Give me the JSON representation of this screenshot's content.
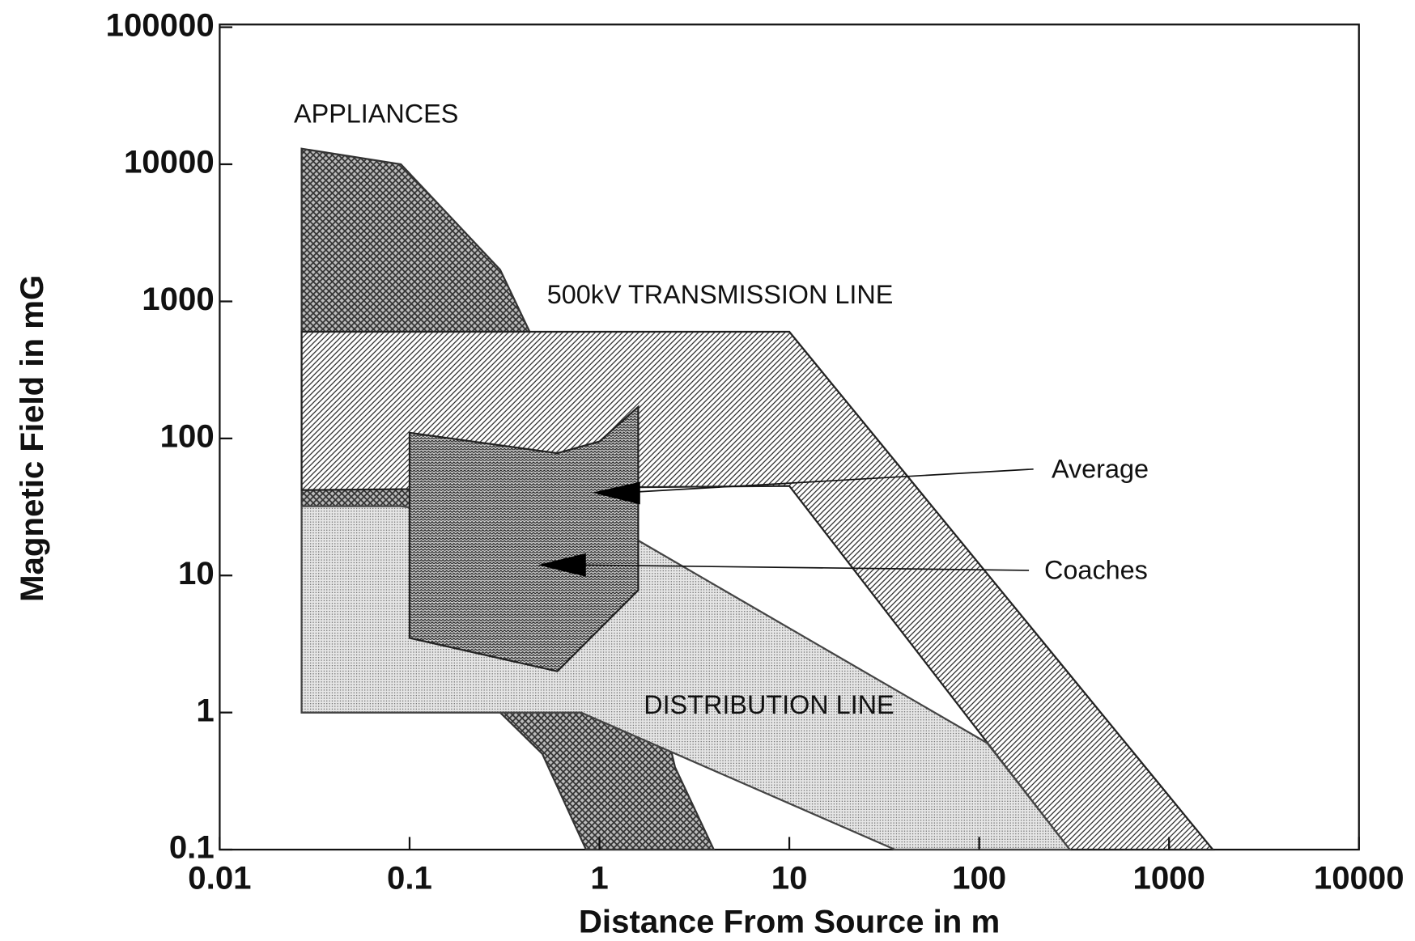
{
  "chart_data": {
    "type": "region",
    "xlabel": "Distance From Source in m",
    "ylabel": "Magnetic Field in mG",
    "xscale": "log",
    "yscale": "log",
    "xlim": [
      0.01,
      10000
    ],
    "ylim": [
      0.1,
      100000
    ],
    "xticks": [
      0.01,
      0.1,
      1,
      10,
      100,
      1000,
      10000
    ],
    "yticks": [
      0.1,
      1,
      10,
      100,
      1000,
      10000,
      100000
    ],
    "series": [
      {
        "name": "APPLIANCES",
        "color": "#333333",
        "x": [
          0.027,
          0.09,
          0.3,
          1.2,
          2.5,
          4,
          0.85,
          0.5,
          0.3,
          0.027
        ],
        "y": [
          13000,
          10000,
          1700,
          30,
          0.4,
          0.1,
          0.1,
          0.5,
          1,
          1
        ]
      },
      {
        "name": "500kV TRANSMISSION LINE",
        "color": "#222222",
        "x": [
          0.027,
          10,
          1700,
          300,
          10,
          0.027
        ],
        "y": [
          600,
          600,
          0.1,
          0.1,
          45,
          42
        ]
      },
      {
        "name": "DISTRIBUTION LINE",
        "color": "#444444",
        "x": [
          0.027,
          0.09,
          1.6,
          110,
          300,
          36,
          0.8,
          0.027
        ],
        "y": [
          32,
          32,
          18,
          0.6,
          0.1,
          0.1,
          1,
          1
        ]
      },
      {
        "name": "Coaches region",
        "color": "#222222",
        "x": [
          0.1,
          0.6,
          1,
          1.6,
          1.6,
          0.6,
          0.1
        ],
        "y": [
          110,
          78,
          95,
          170,
          7.8,
          2,
          3.5
        ]
      }
    ],
    "annotations": [
      "Average",
      "Coaches"
    ]
  }
}
